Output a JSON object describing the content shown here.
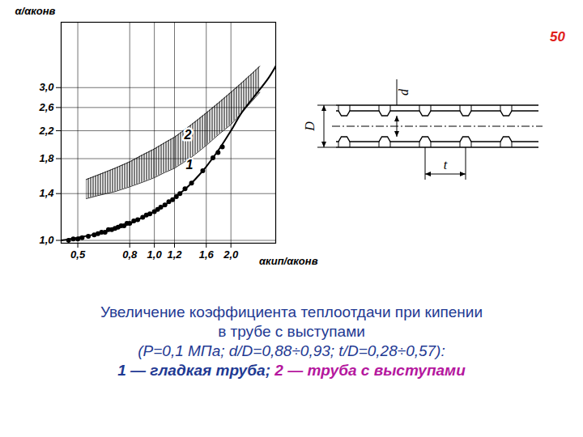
{
  "chart_data": {
    "type": "line",
    "x_label": "αкип/αконв",
    "y_label": "α/αконв",
    "log": true,
    "grid": true,
    "xlim": [
      0.43,
      3.0
    ],
    "ylim": [
      0.98,
      4.8
    ],
    "xticks": [
      {
        "value": 0.5,
        "label": "0,5"
      },
      {
        "value": 0.8,
        "label": "0,8"
      },
      {
        "value": 1.0,
        "label": "1,0"
      },
      {
        "value": 1.2,
        "label": "1,2"
      },
      {
        "value": 1.6,
        "label": "1,6"
      },
      {
        "value": 2.0,
        "label": "2,0"
      }
    ],
    "yticks": [
      {
        "value": 1.0,
        "label": "1,0"
      },
      {
        "value": 1.4,
        "label": "1,4"
      },
      {
        "value": 1.8,
        "label": "1,8"
      },
      {
        "value": 2.2,
        "label": "2,2"
      },
      {
        "value": 2.6,
        "label": "2,6"
      },
      {
        "value": 3.0,
        "label": "3,0"
      }
    ],
    "series": [
      {
        "name": "1",
        "type": "line",
        "color": "#000000",
        "x": [
          0.43,
          0.5,
          0.6,
          0.7,
          0.8,
          0.9,
          1.0,
          1.1,
          1.2,
          1.3,
          1.4,
          1.5,
          1.6,
          1.8,
          2.0,
          2.2,
          2.5,
          2.8,
          3.0
        ],
        "values": [
          1.0,
          1.02,
          1.05,
          1.09,
          1.13,
          1.18,
          1.23,
          1.29,
          1.36,
          1.43,
          1.51,
          1.6,
          1.7,
          1.93,
          2.2,
          2.5,
          2.85,
          3.2,
          3.5
        ]
      },
      {
        "type": "scatter",
        "marker": "dot",
        "color": "#000000",
        "x": [
          0.46,
          0.48,
          0.5,
          0.52,
          0.55,
          0.58,
          0.6,
          0.62,
          0.64,
          0.66,
          0.68,
          0.7,
          0.72,
          0.74,
          0.76,
          0.78,
          0.8,
          0.83,
          0.86,
          0.9,
          0.93,
          0.96,
          1.0,
          1.03,
          1.06,
          1.1,
          1.14,
          1.18,
          1.22,
          1.26,
          1.32,
          1.4,
          1.55,
          1.7,
          1.78,
          1.85
        ],
        "values": [
          1.0,
          1.01,
          1.01,
          1.02,
          1.03,
          1.04,
          1.05,
          1.06,
          1.06,
          1.08,
          1.08,
          1.09,
          1.1,
          1.11,
          1.11,
          1.13,
          1.13,
          1.15,
          1.16,
          1.18,
          1.2,
          1.21,
          1.23,
          1.25,
          1.27,
          1.29,
          1.32,
          1.34,
          1.37,
          1.4,
          1.45,
          1.51,
          1.65,
          1.81,
          1.88,
          1.96
        ]
      },
      {
        "name": "2",
        "type": "band",
        "color": "#000000",
        "x": [
          0.54,
          0.6,
          0.7,
          0.8,
          0.9,
          1.0,
          1.1,
          1.2,
          1.3,
          1.4,
          1.5,
          1.6,
          1.8,
          2.0,
          2.2,
          2.4,
          2.6
        ],
        "low": [
          1.35,
          1.38,
          1.42,
          1.47,
          1.52,
          1.57,
          1.63,
          1.68,
          1.75,
          1.82,
          1.9,
          1.98,
          2.15,
          2.3,
          2.5,
          2.7,
          2.9
        ],
        "high": [
          1.55,
          1.6,
          1.68,
          1.76,
          1.85,
          1.93,
          2.02,
          2.1,
          2.2,
          2.3,
          2.4,
          2.5,
          2.7,
          2.9,
          3.1,
          3.3,
          3.5
        ]
      }
    ]
  },
  "diagram": {
    "labels": [
      "D",
      "d",
      "t"
    ]
  },
  "page_number": "50",
  "caption": {
    "lines": [
      "Увеличение коэффициента теплоотдачи при кипении",
      "в трубе с выступами",
      "(P=0,1 МПа; d/D=0,88÷0,93; t/D=0,28÷0,57):"
    ],
    "legend": [
      {
        "text": "1 — гладкая труба",
        "color": "#1f3a93"
      },
      {
        "text": "2 — труба с выступами",
        "color": "#b5179e"
      }
    ],
    "separator": "; "
  }
}
